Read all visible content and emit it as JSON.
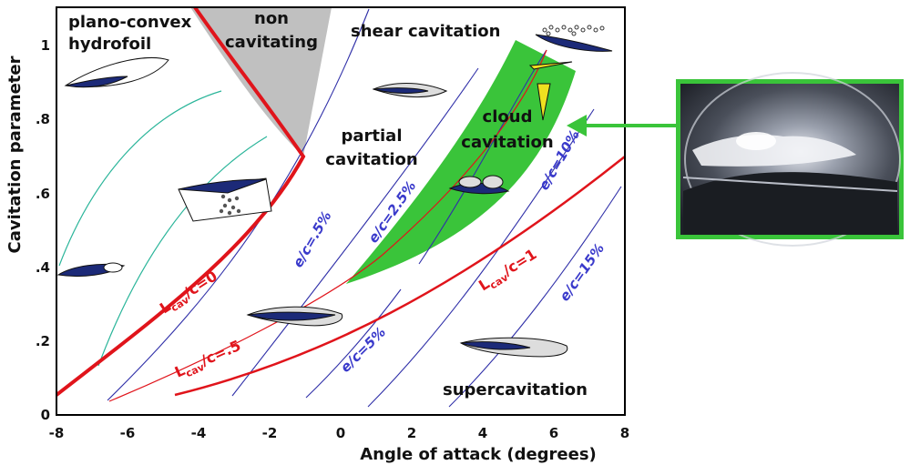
{
  "chart_data": {
    "type": "diagram",
    "xlabel": "Angle of attack (degrees)",
    "ylabel": "Cavitation parameter",
    "xlim": [
      -8,
      8
    ],
    "ylim": [
      0,
      1.1
    ],
    "x_ticks": [
      "-8",
      "-6",
      "-4",
      "-2",
      "0",
      "2",
      "4",
      "6",
      "8"
    ],
    "y_ticks": [
      "0",
      ".2",
      ".4",
      ".6",
      ".8",
      "1"
    ],
    "regions": {
      "foil_type_line1": "plano-convex",
      "foil_type_line2": "hydrofoil",
      "non_cav_line1": "non",
      "non_cav_line2": "cavitating",
      "shear": "shear cavitation",
      "partial_line1": "partial",
      "partial_line2": "cavitation",
      "cloud_line1": "cloud",
      "cloud_line2": "cavitation",
      "super": "supercavitation"
    },
    "red_curves": [
      {
        "label_main": "L",
        "label_sub": "cav",
        "label_tail": "/c=0"
      },
      {
        "label_main": "L",
        "label_sub": "cav",
        "label_tail": "/c=.5"
      },
      {
        "label_main": "L",
        "label_sub": "cav",
        "label_tail": "/c=1"
      }
    ],
    "blue_curves": [
      {
        "label": "e/c=.5%"
      },
      {
        "label": "e/c=2.5%"
      },
      {
        "label": "e/c=5%"
      },
      {
        "label": "e/c=10%"
      },
      {
        "label": "e/c=15%"
      }
    ],
    "colors": {
      "frame": "#000000",
      "red": "#e0141b",
      "blue": "#2f2fa8",
      "teal": "#2bb59a",
      "green": "#3ac43a",
      "gray": "#c0c0c0",
      "foil": "#1c2a78"
    },
    "photo": {
      "border_color": "#3ac43a"
    }
  }
}
